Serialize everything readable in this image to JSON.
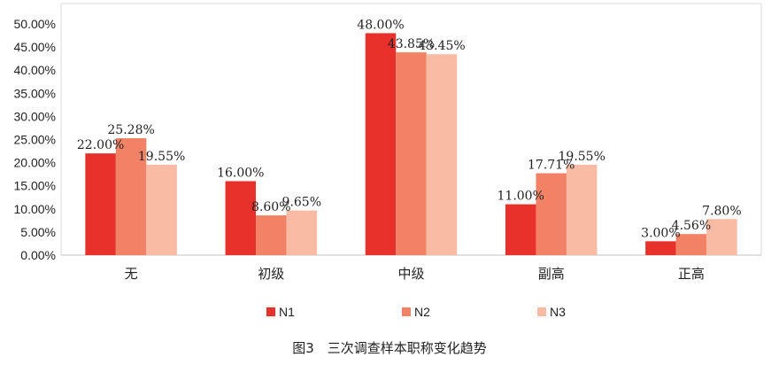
{
  "chart_data": {
    "type": "bar",
    "title": "",
    "caption": "图3　三次调查样本职称变化趋势",
    "categories": [
      "无",
      "初级",
      "中级",
      "副高",
      "正高"
    ],
    "series": [
      {
        "name": "N1",
        "color": "#e8312a",
        "values": [
          22.0,
          16.0,
          48.0,
          11.0,
          3.0
        ],
        "labels": [
          "22.00%",
          "16.00%",
          "48.00%",
          "11.00%",
          "3.00%"
        ]
      },
      {
        "name": "N2",
        "color": "#f28265",
        "values": [
          25.28,
          8.6,
          43.85,
          17.71,
          4.56
        ],
        "labels": [
          "25.28%",
          "8.60%",
          "43.85%",
          "17.71%",
          "4.56%"
        ]
      },
      {
        "name": "N3",
        "color": "#f9bba3",
        "values": [
          19.55,
          9.65,
          43.45,
          19.55,
          7.8
        ],
        "labels": [
          "19.55%",
          "9.65%",
          "43.45%",
          "19.55%",
          "7.80%"
        ]
      }
    ],
    "ylim": [
      0,
      50
    ],
    "yticks": [
      "0.00%",
      "5.00%",
      "10.00%",
      "15.00%",
      "20.00%",
      "25.00%",
      "30.00%",
      "35.00%",
      "40.00%",
      "45.00%",
      "50.00%"
    ],
    "xlabel": "",
    "ylabel": "",
    "legend_position": "bottom",
    "grid": false
  }
}
